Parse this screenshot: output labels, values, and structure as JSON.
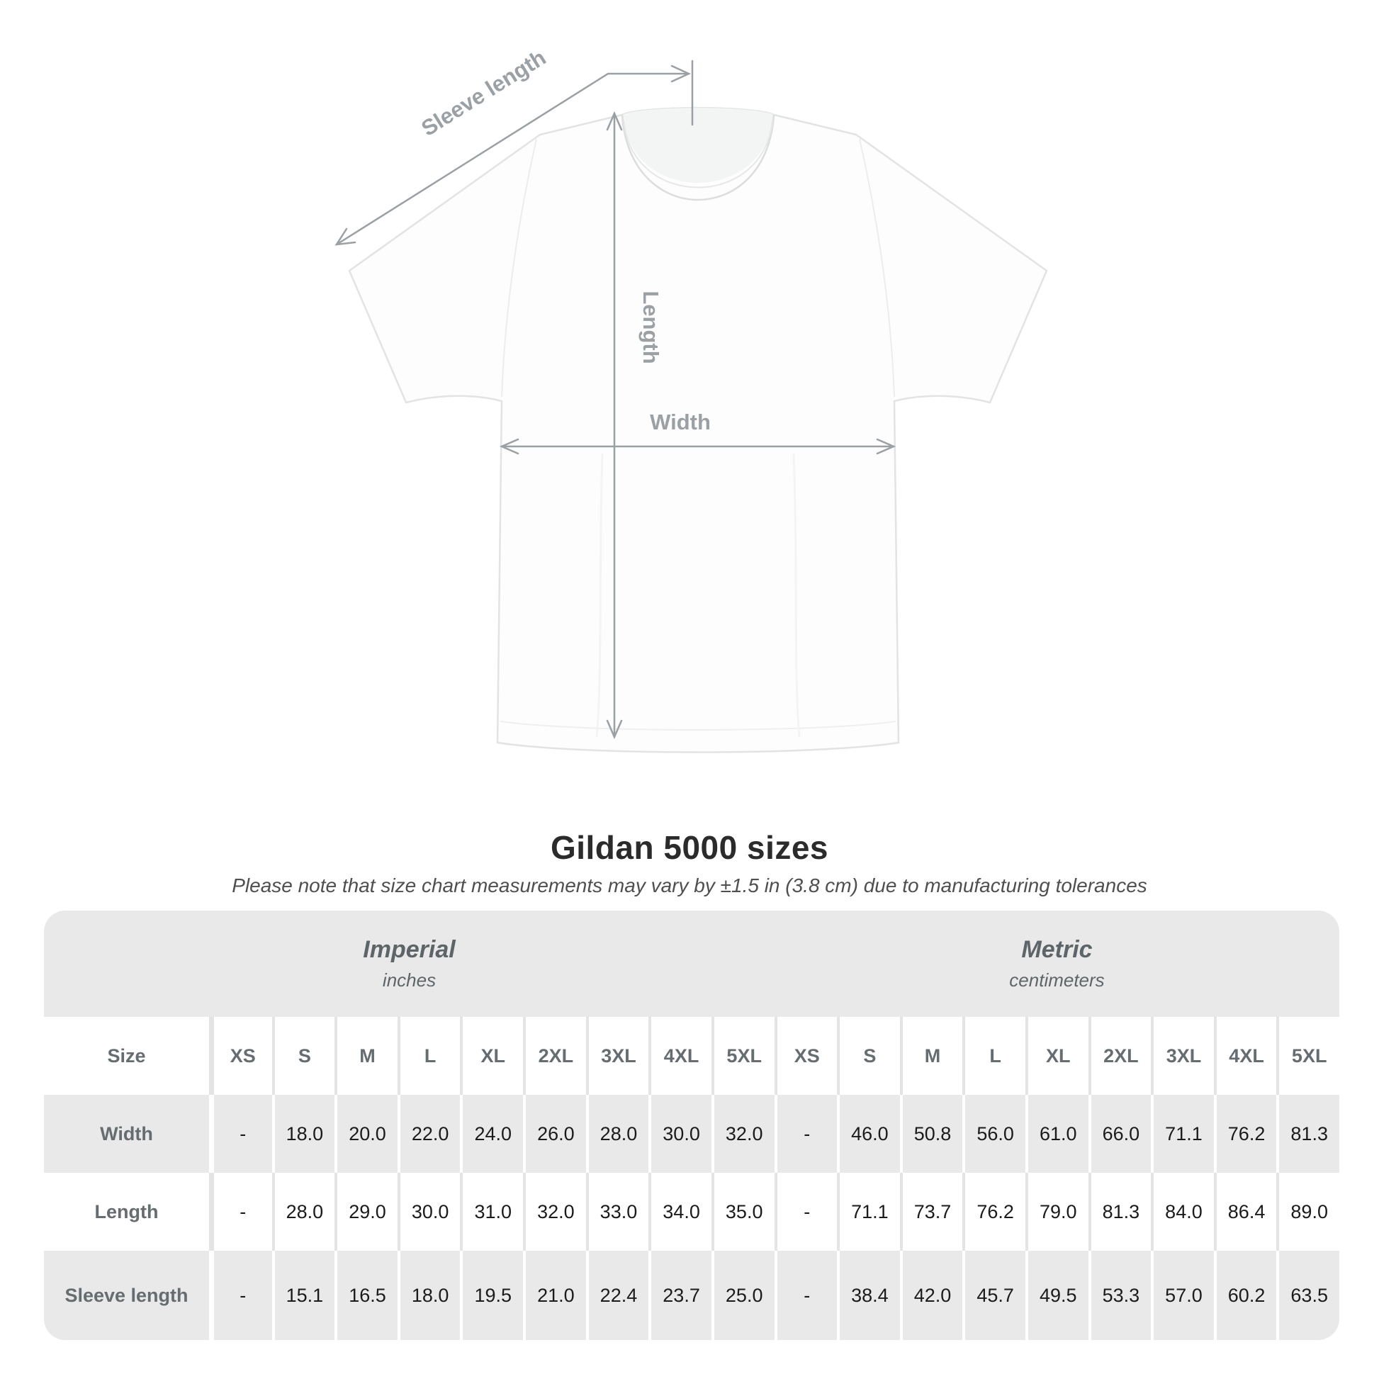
{
  "title": "Gildan 5000 sizes",
  "subtitle": "Please note that size chart measurements may vary by ±1.5 in (3.8 cm) due to manufacturing tolerances",
  "diagram": {
    "sleeve_length_label": "Sleeve length",
    "length_label": "Length",
    "width_label": "Width"
  },
  "table": {
    "sections": [
      {
        "title": "Imperial",
        "unit": "inches"
      },
      {
        "title": "Metric",
        "unit": "centimeters"
      }
    ],
    "size_column_header": "Size",
    "size_headers": [
      "XS",
      "S",
      "M",
      "L",
      "XL",
      "2XL",
      "3XL",
      "4XL",
      "5XL"
    ],
    "rows": [
      {
        "label": "Width",
        "imperial": [
          "-",
          "18.0",
          "20.0",
          "22.0",
          "24.0",
          "26.0",
          "28.0",
          "30.0",
          "32.0"
        ],
        "metric": [
          "-",
          "46.0",
          "50.8",
          "56.0",
          "61.0",
          "66.0",
          "71.1",
          "76.2",
          "81.3"
        ]
      },
      {
        "label": "Length",
        "imperial": [
          "-",
          "28.0",
          "29.0",
          "30.0",
          "31.0",
          "32.0",
          "33.0",
          "34.0",
          "35.0"
        ],
        "metric": [
          "-",
          "71.1",
          "73.7",
          "76.2",
          "79.0",
          "81.3",
          "84.0",
          "86.4",
          "89.0"
        ]
      },
      {
        "label": "Sleeve length",
        "imperial": [
          "-",
          "15.1",
          "16.5",
          "18.0",
          "19.5",
          "21.0",
          "22.4",
          "23.7",
          "25.0"
        ],
        "metric": [
          "-",
          "38.4",
          "42.0",
          "45.7",
          "49.5",
          "53.3",
          "57.0",
          "60.2",
          "63.5"
        ]
      }
    ]
  },
  "colors": {
    "table_band_gray": "#e9e9e9",
    "header_text": "#666d70",
    "data_text": "#1b1b1b",
    "annotation_gray": "#9aa0a4"
  }
}
